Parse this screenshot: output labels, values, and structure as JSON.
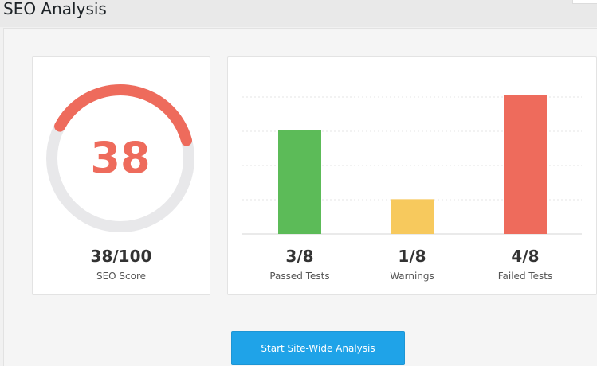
{
  "page": {
    "title": "SEO Analysis"
  },
  "score_card": {
    "score_display": "38",
    "score_fraction": "38/100",
    "label": "SEO Score",
    "score": 38,
    "max": 100,
    "arc_color": "#ee6b5c",
    "track_color": "#e8e8ea"
  },
  "tests_card": {
    "columns": [
      {
        "value": "3/8",
        "label": "Passed Tests"
      },
      {
        "value": "1/8",
        "label": "Warnings"
      },
      {
        "value": "4/8",
        "label": "Failed Tests"
      }
    ]
  },
  "chart_data": {
    "type": "bar",
    "categories": [
      "Passed Tests",
      "Warnings",
      "Failed Tests"
    ],
    "values": [
      3,
      1,
      4
    ],
    "colors": [
      "#5cbb58",
      "#f7c95d",
      "#ee6b5c"
    ],
    "ylim": [
      0,
      4.4
    ],
    "grid": true
  },
  "actions": {
    "start_label": "Start Site-Wide Analysis"
  }
}
